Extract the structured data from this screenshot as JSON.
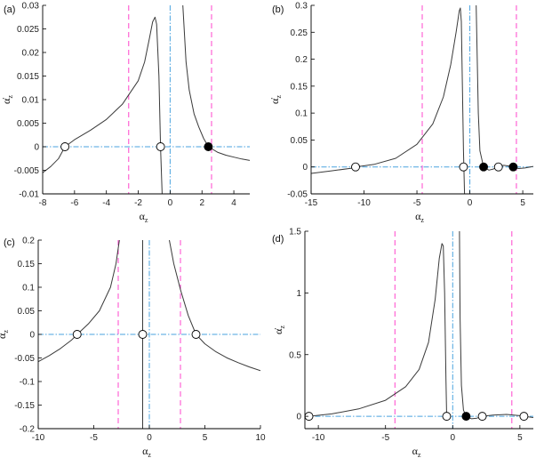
{
  "colors": {
    "curve": "#3a3a3a",
    "magenta_line": "#ff44cc",
    "cyan_line": "#4aa3df",
    "open_point_fill": "#ffffff",
    "filled_point_fill": "#000000",
    "axes": "#000000"
  },
  "chart_data": [
    {
      "id": "a",
      "type": "line",
      "panel_label": "(a)",
      "xlabel": "α",
      "xlabel_sub": "z",
      "ylabel": "α̇",
      "ylabel_sub": "z",
      "xlim": [
        -8,
        5
      ],
      "ylim": [
        -0.01,
        0.03
      ],
      "xticks": [
        -8,
        -6,
        -4,
        -2,
        0,
        2,
        4
      ],
      "yticks": [
        -0.01,
        -0.005,
        0,
        0.005,
        0.01,
        0.015,
        0.02,
        0.025,
        0.03
      ],
      "xtick_labels": [
        "-8",
        "-6",
        "-4",
        "-2",
        "0",
        "2",
        "4"
      ],
      "ytick_labels": [
        "-0.01",
        "-0.005",
        "0",
        "0.005",
        "0.01",
        "0.015",
        "0.02",
        "0.025",
        "0.03"
      ],
      "magenta_x": [
        -2.6,
        2.6
      ],
      "cyan_x": [
        0
      ],
      "cyan_y": [
        0
      ],
      "series": [
        {
          "points": [
            [
              -8,
              -0.0055
            ],
            [
              -7.5,
              -0.0042
            ],
            [
              -7,
              -0.0025
            ],
            [
              -6.6,
              0
            ],
            [
              -6,
              0.0015
            ],
            [
              -5,
              0.0035
            ],
            [
              -4,
              0.0058
            ],
            [
              -3,
              0.009
            ],
            [
              -2,
              0.014
            ],
            [
              -1.6,
              0.018
            ],
            [
              -1.3,
              0.023
            ],
            [
              -1.1,
              0.0265
            ],
            [
              -0.95,
              0.0275
            ],
            [
              -0.85,
              0.026
            ],
            [
              -0.7,
              0.015
            ],
            [
              -0.6,
              0
            ],
            [
              -0.5,
              -0.01
            ]
          ]
        },
        {
          "points": [
            [
              0.8,
              0.03
            ],
            [
              0.9,
              0.024
            ],
            [
              1,
              0.018
            ],
            [
              1.2,
              0.012
            ],
            [
              1.5,
              0.007
            ],
            [
              1.8,
              0.0042
            ],
            [
              2.1,
              0.0018
            ],
            [
              2.4,
              0
            ],
            [
              3,
              -0.0012
            ],
            [
              3.5,
              -0.0018
            ],
            [
              4,
              -0.0022
            ],
            [
              4.5,
              -0.0026
            ],
            [
              5,
              -0.0029
            ]
          ]
        }
      ],
      "open_points": [
        [
          -6.6,
          0
        ],
        [
          -0.6,
          0
        ]
      ],
      "filled_points": [
        [
          2.4,
          0
        ]
      ]
    },
    {
      "id": "b",
      "type": "line",
      "panel_label": "(b)",
      "xlabel": "α",
      "xlabel_sub": "z",
      "ylabel": "α̇",
      "ylabel_sub": "z",
      "xlim": [
        -15,
        6
      ],
      "ylim": [
        -0.05,
        0.3
      ],
      "xticks": [
        -15,
        -10,
        -5,
        0,
        5
      ],
      "yticks": [
        -0.05,
        0,
        0.05,
        0.1,
        0.15,
        0.2,
        0.25,
        0.3
      ],
      "xtick_labels": [
        "-15",
        "-10",
        "-5",
        "0",
        "5"
      ],
      "ytick_labels": [
        "-0.05",
        "0",
        "0.05",
        "0.1",
        "0.15",
        "0.2",
        "0.25",
        "0.3"
      ],
      "magenta_x": [
        -4.5,
        4.4
      ],
      "cyan_x": [
        0
      ],
      "cyan_y": [
        0
      ],
      "series": [
        {
          "points": [
            [
              -15,
              -0.012
            ],
            [
              -13,
              -0.007
            ],
            [
              -11,
              -0.002
            ],
            [
              -10.8,
              0
            ],
            [
              -9,
              0.005
            ],
            [
              -7,
              0.016
            ],
            [
              -5,
              0.042
            ],
            [
              -3.5,
              0.08
            ],
            [
              -2.5,
              0.13
            ],
            [
              -1.8,
              0.19
            ],
            [
              -1.3,
              0.25
            ],
            [
              -1.0,
              0.29
            ],
            [
              -0.9,
              0.295
            ],
            [
              -0.8,
              0.27
            ],
            [
              -0.7,
              0.15
            ],
            [
              -0.6,
              0.03
            ],
            [
              -0.5,
              -0.05
            ]
          ]
        },
        {
          "points": [
            [
              0.6,
              0.3
            ],
            [
              0.7,
              0.2
            ],
            [
              0.8,
              0.1
            ],
            [
              0.95,
              0.03
            ],
            [
              1.3,
              0
            ],
            [
              1.8,
              -0.006
            ],
            [
              2.2,
              -0.004
            ],
            [
              2.7,
              0
            ],
            [
              3.2,
              0.003
            ],
            [
              3.6,
              0.002
            ],
            [
              4.1,
              0
            ],
            [
              4.6,
              -0.003
            ],
            [
              5.2,
              -0.002
            ],
            [
              6,
              0.001
            ]
          ]
        }
      ],
      "open_points": [
        [
          -10.8,
          0
        ],
        [
          -0.6,
          0
        ],
        [
          2.7,
          0
        ]
      ],
      "filled_points": [
        [
          1.3,
          0
        ],
        [
          4.1,
          0
        ]
      ]
    },
    {
      "id": "c",
      "type": "line",
      "panel_label": "(c)",
      "xlabel": "α",
      "xlabel_sub": "z",
      "ylabel": "α̇",
      "ylabel_sub": "z",
      "xlim": [
        -10,
        10
      ],
      "ylim": [
        -0.2,
        0.2
      ],
      "xticks": [
        -10,
        -5,
        0,
        5,
        10
      ],
      "yticks": [
        -0.2,
        -0.15,
        -0.1,
        -0.05,
        0,
        0.05,
        0.1,
        0.15,
        0.2
      ],
      "xtick_labels": [
        "-10",
        "-5",
        "0",
        "5",
        "10"
      ],
      "ytick_labels": [
        "-0.2",
        "-0.15",
        "-0.1",
        "-0.05",
        "0",
        "0.05",
        "0.1",
        "0.15",
        "0.2"
      ],
      "magenta_x": [
        -2.8,
        2.8
      ],
      "cyan_x": [
        0
      ],
      "cyan_y": [
        0
      ],
      "series": [
        {
          "points": [
            [
              -10,
              -0.058
            ],
            [
              -9,
              -0.045
            ],
            [
              -8,
              -0.03
            ],
            [
              -7,
              -0.012
            ],
            [
              -6.5,
              0
            ],
            [
              -5.5,
              0.022
            ],
            [
              -4.5,
              0.05
            ],
            [
              -3.5,
              0.1
            ],
            [
              -3,
              0.15
            ],
            [
              -2.7,
              0.2
            ]
          ]
        },
        {
          "points": [
            [
              -0.6,
              0.2
            ],
            [
              -0.6,
              -0.2
            ]
          ]
        },
        {
          "points": [
            [
              1.8,
              0.2
            ],
            [
              2.2,
              0.15
            ],
            [
              2.8,
              0.095
            ],
            [
              3.5,
              0.04
            ],
            [
              4.2,
              0
            ],
            [
              5,
              -0.02
            ],
            [
              6,
              -0.037
            ],
            [
              7,
              -0.05
            ],
            [
              8,
              -0.06
            ],
            [
              9,
              -0.069
            ],
            [
              10,
              -0.077
            ]
          ]
        }
      ],
      "open_points": [
        [
          -6.5,
          0
        ],
        [
          -0.6,
          0
        ],
        [
          4.2,
          0
        ]
      ],
      "filled_points": []
    },
    {
      "id": "d",
      "type": "line",
      "panel_label": "(d)",
      "xlabel": "α",
      "xlabel_sub": "z",
      "ylabel": "α̇",
      "ylabel_sub": "z",
      "xlim": [
        -11,
        6
      ],
      "ylim": [
        -0.1,
        1.5
      ],
      "xticks": [
        -10,
        -5,
        0,
        5
      ],
      "yticks": [
        0,
        0.5,
        1,
        1.5
      ],
      "xtick_labels": [
        "-10",
        "-5",
        "0",
        "5"
      ],
      "ytick_labels": [
        "0",
        "0.5",
        "1",
        "1.5"
      ],
      "magenta_x": [
        -4.3,
        4.4
      ],
      "cyan_x": [
        0
      ],
      "cyan_y": [
        0
      ],
      "series": [
        {
          "points": [
            [
              -10.7,
              0
            ],
            [
              -9,
              0.02
            ],
            [
              -7,
              0.06
            ],
            [
              -5,
              0.13
            ],
            [
              -3.5,
              0.24
            ],
            [
              -2.5,
              0.38
            ],
            [
              -1.8,
              0.6
            ],
            [
              -1.3,
              0.95
            ],
            [
              -1.0,
              1.28
            ],
            [
              -0.8,
              1.4
            ],
            [
              -0.7,
              1.38
            ],
            [
              -0.6,
              1.0
            ],
            [
              -0.5,
              0.3
            ],
            [
              -0.45,
              0
            ]
          ]
        },
        {
          "points": [
            [
              0.5,
              1.5
            ],
            [
              0.55,
              0.8
            ],
            [
              0.65,
              0.25
            ],
            [
              0.8,
              0.05
            ],
            [
              1.0,
              0
            ],
            [
              1.4,
              -0.02
            ],
            [
              1.8,
              -0.015
            ],
            [
              2.2,
              0
            ],
            [
              3,
              0.01
            ],
            [
              4,
              0.015
            ],
            [
              5,
              0.005
            ],
            [
              5.3,
              0
            ],
            [
              6,
              -0.01
            ]
          ]
        }
      ],
      "open_points": [
        [
          -10.7,
          0
        ],
        [
          -0.45,
          0
        ],
        [
          2.2,
          0
        ],
        [
          5.3,
          0
        ]
      ],
      "filled_points": [
        [
          1.0,
          0
        ]
      ]
    }
  ]
}
